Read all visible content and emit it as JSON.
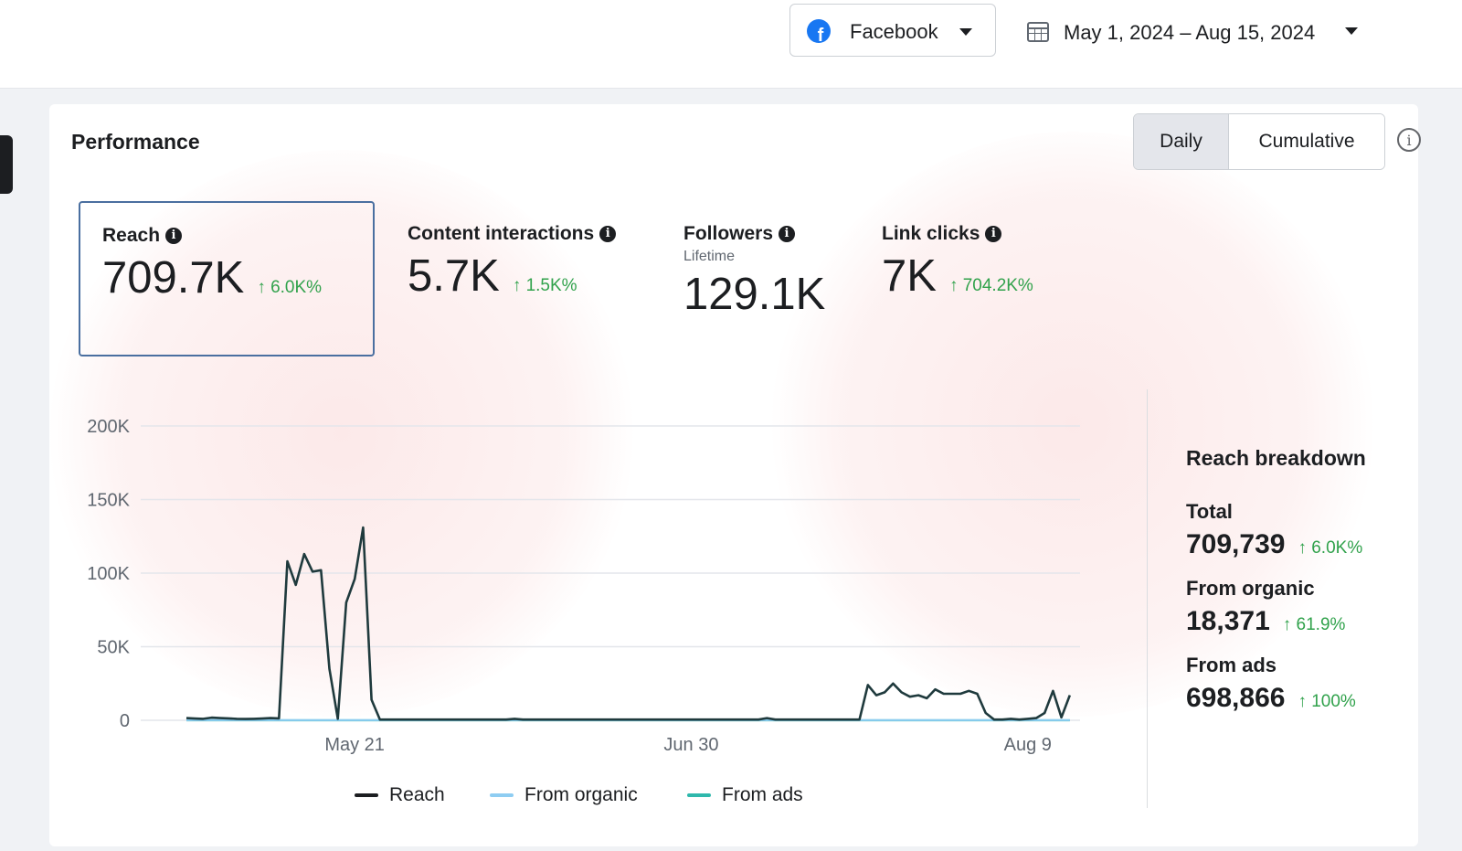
{
  "header": {
    "platform": "Facebook",
    "date_range": "May 1, 2024 – Aug 15, 2024"
  },
  "card": {
    "title": "Performance",
    "toggle": {
      "daily": "Daily",
      "cumulative": "Cumulative"
    }
  },
  "metrics": [
    {
      "label": "Reach",
      "value": "709.7K",
      "change": "↑ 6.0K%",
      "sub": ""
    },
    {
      "label": "Content interactions",
      "value": "5.7K",
      "change": "↑ 1.5K%",
      "sub": ""
    },
    {
      "label": "Followers",
      "value": "129.1K",
      "change": "",
      "sub": "Lifetime"
    },
    {
      "label": "Link clicks",
      "value": "7K",
      "change": "↑ 704.2K%",
      "sub": ""
    }
  ],
  "breakdown": {
    "title": "Reach breakdown",
    "items": [
      {
        "label": "Total",
        "value": "709,739",
        "change": "↑ 6.0K%"
      },
      {
        "label": "From organic",
        "value": "18,371",
        "change": "↑ 61.9%"
      },
      {
        "label": "From ads",
        "value": "698,866",
        "change": "↑ 100%"
      }
    ]
  },
  "colors": {
    "reach": "#1f3a3d",
    "organic": "#8ecdf2",
    "ads": "#2fb8ac",
    "positive": "#31a24c",
    "grid": "#e4e6eb"
  },
  "chart_data": {
    "type": "line",
    "ylim": [
      0,
      200000
    ],
    "yticks": [
      0,
      50000,
      100000,
      150000,
      200000
    ],
    "ytick_labels": [
      "0",
      "50K",
      "100K",
      "150K",
      "200K"
    ],
    "xtick_labels": [
      "May 21",
      "Jun 30",
      "Aug 9"
    ],
    "xticks": [
      "2024-05-21",
      "2024-06-30",
      "2024-08-09"
    ],
    "x_range": [
      "2024-05-01",
      "2024-08-15"
    ],
    "series": [
      {
        "name": "Reach",
        "color": "#1f3a3d",
        "points": [
          [
            "2024-05-01",
            1500
          ],
          [
            "2024-05-02",
            1200
          ],
          [
            "2024-05-03",
            1000
          ],
          [
            "2024-05-04",
            1800
          ],
          [
            "2024-05-05",
            1500
          ],
          [
            "2024-05-06",
            1300
          ],
          [
            "2024-05-07",
            1000
          ],
          [
            "2024-05-08",
            900
          ],
          [
            "2024-05-09",
            1000
          ],
          [
            "2024-05-10",
            1200
          ],
          [
            "2024-05-11",
            1500
          ],
          [
            "2024-05-12",
            1300
          ],
          [
            "2024-05-13",
            108000
          ],
          [
            "2024-05-14",
            92000
          ],
          [
            "2024-05-15",
            113000
          ],
          [
            "2024-05-16",
            101000
          ],
          [
            "2024-05-17",
            102000
          ],
          [
            "2024-05-18",
            35000
          ],
          [
            "2024-05-19",
            1000
          ],
          [
            "2024-05-20",
            80000
          ],
          [
            "2024-05-21",
            96000
          ],
          [
            "2024-05-22",
            131000
          ],
          [
            "2024-05-23",
            14000
          ],
          [
            "2024-05-24",
            500
          ],
          [
            "2024-05-25",
            500
          ],
          [
            "2024-05-26",
            500
          ],
          [
            "2024-05-27",
            500
          ],
          [
            "2024-05-28",
            500
          ],
          [
            "2024-05-29",
            500
          ],
          [
            "2024-05-30",
            500
          ],
          [
            "2024-05-31",
            500
          ],
          [
            "2024-06-01",
            500
          ],
          [
            "2024-06-02",
            500
          ],
          [
            "2024-06-03",
            500
          ],
          [
            "2024-06-04",
            500
          ],
          [
            "2024-06-05",
            500
          ],
          [
            "2024-06-06",
            500
          ],
          [
            "2024-06-07",
            500
          ],
          [
            "2024-06-08",
            500
          ],
          [
            "2024-06-09",
            1000
          ],
          [
            "2024-06-10",
            500
          ],
          [
            "2024-06-11",
            500
          ],
          [
            "2024-06-12",
            500
          ],
          [
            "2024-06-13",
            500
          ],
          [
            "2024-06-14",
            500
          ],
          [
            "2024-06-15",
            500
          ],
          [
            "2024-06-16",
            500
          ],
          [
            "2024-06-17",
            500
          ],
          [
            "2024-06-18",
            500
          ],
          [
            "2024-06-19",
            500
          ],
          [
            "2024-06-20",
            500
          ],
          [
            "2024-06-21",
            500
          ],
          [
            "2024-06-22",
            500
          ],
          [
            "2024-06-23",
            500
          ],
          [
            "2024-06-24",
            500
          ],
          [
            "2024-06-25",
            500
          ],
          [
            "2024-06-26",
            500
          ],
          [
            "2024-06-27",
            500
          ],
          [
            "2024-06-28",
            500
          ],
          [
            "2024-06-29",
            500
          ],
          [
            "2024-06-30",
            500
          ],
          [
            "2024-07-01",
            500
          ],
          [
            "2024-07-02",
            500
          ],
          [
            "2024-07-03",
            500
          ],
          [
            "2024-07-04",
            500
          ],
          [
            "2024-07-05",
            500
          ],
          [
            "2024-07-06",
            500
          ],
          [
            "2024-07-07",
            500
          ],
          [
            "2024-07-08",
            500
          ],
          [
            "2024-07-09",
            1500
          ],
          [
            "2024-07-10",
            500
          ],
          [
            "2024-07-11",
            500
          ],
          [
            "2024-07-12",
            500
          ],
          [
            "2024-07-13",
            500
          ],
          [
            "2024-07-14",
            500
          ],
          [
            "2024-07-15",
            500
          ],
          [
            "2024-07-16",
            500
          ],
          [
            "2024-07-17",
            500
          ],
          [
            "2024-07-18",
            500
          ],
          [
            "2024-07-19",
            500
          ],
          [
            "2024-07-20",
            500
          ],
          [
            "2024-07-21",
            24000
          ],
          [
            "2024-07-22",
            17000
          ],
          [
            "2024-07-23",
            19000
          ],
          [
            "2024-07-24",
            25000
          ],
          [
            "2024-07-25",
            19000
          ],
          [
            "2024-07-26",
            16000
          ],
          [
            "2024-07-27",
            17000
          ],
          [
            "2024-07-28",
            15000
          ],
          [
            "2024-07-29",
            21000
          ],
          [
            "2024-07-30",
            18000
          ],
          [
            "2024-07-31",
            18000
          ],
          [
            "2024-08-01",
            18000
          ],
          [
            "2024-08-02",
            20000
          ],
          [
            "2024-08-03",
            18000
          ],
          [
            "2024-08-04",
            5000
          ],
          [
            "2024-08-05",
            500
          ],
          [
            "2024-08-06",
            500
          ],
          [
            "2024-08-07",
            1000
          ],
          [
            "2024-08-08",
            500
          ],
          [
            "2024-08-09",
            1000
          ],
          [
            "2024-08-10",
            1500
          ],
          [
            "2024-08-11",
            5000
          ],
          [
            "2024-08-12",
            20000
          ],
          [
            "2024-08-13",
            2000
          ],
          [
            "2024-08-14",
            17000
          ]
        ]
      },
      {
        "name": "From organic",
        "color": "#8ecdf2",
        "points": [
          [
            "2024-05-01",
            150
          ],
          [
            "2024-08-14",
            150
          ]
        ]
      },
      {
        "name": "From ads",
        "color": "#2fb8ac",
        "points": [
          [
            "2024-05-01",
            0
          ],
          [
            "2024-08-14",
            0
          ]
        ]
      }
    ]
  }
}
